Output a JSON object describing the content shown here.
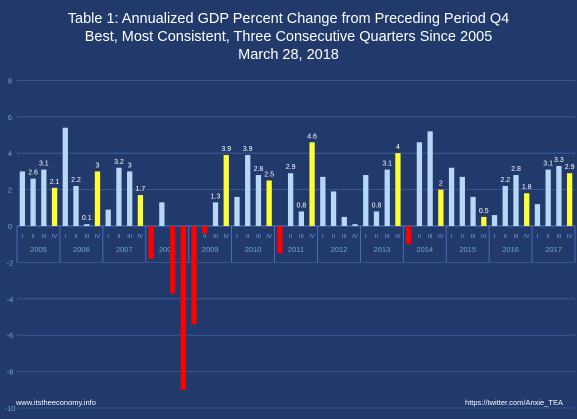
{
  "title": {
    "line1": "Table 1: Annualized GDP Percent Change from Preceding Period Q4",
    "line2": "Best, Most Consistent, Three Consecutive Quarters Since 2005",
    "line3": "March 28, 2018"
  },
  "footer": {
    "left": "www.itstheeconomy.info",
    "right": "https://twitter.com/Anxie_TEA"
  },
  "colors": {
    "background": "#21396b",
    "normal_bar": "#b7d7f5",
    "highlight_bar": "#ffff33",
    "negative_bar": "#ff0000",
    "text": "#ffffff",
    "tick_text": "#6fa8dc",
    "grid": "#3f62a2"
  },
  "chart_data": {
    "type": "bar",
    "ylim": [
      -10,
      8
    ],
    "yticks": [
      -10,
      -8,
      -6,
      -4,
      -2,
      0,
      2,
      4,
      6,
      8
    ],
    "grid": true,
    "quarter_labels": [
      "I",
      "II",
      "III",
      "IV"
    ],
    "years": [
      "2005",
      "2006",
      "2007",
      "2008",
      "2009",
      "2010",
      "2011",
      "2012",
      "2013",
      "2014",
      "2015",
      "2016",
      "2017"
    ],
    "values": [
      3.0,
      2.6,
      3.1,
      2.1,
      5.4,
      2.2,
      0.1,
      3.0,
      0.9,
      3.2,
      3.0,
      1.7,
      -1.8,
      1.3,
      -3.7,
      -9.0,
      -5.4,
      -0.4,
      1.3,
      3.9,
      1.6,
      3.9,
      2.8,
      2.5,
      -1.5,
      2.9,
      0.8,
      4.6,
      2.7,
      1.9,
      0.5,
      0.1,
      2.8,
      0.8,
      3.1,
      4.0,
      -1.0,
      4.6,
      5.2,
      2.0,
      3.2,
      2.7,
      1.6,
      0.5,
      0.6,
      2.2,
      2.8,
      1.8,
      1.2,
      3.1,
      3.3,
      2.9
    ],
    "highlight_quarters": [
      3,
      7,
      11,
      19,
      23,
      27,
      35,
      39,
      43,
      47,
      51
    ],
    "data_labels": [
      {
        "index": 1,
        "text": "2.6"
      },
      {
        "index": 2,
        "text": "3.1"
      },
      {
        "index": 3,
        "text": "2.1"
      },
      {
        "index": 5,
        "text": "2.2"
      },
      {
        "index": 6,
        "text": "0.1"
      },
      {
        "index": 7,
        "text": "3"
      },
      {
        "index": 9,
        "text": "3.2"
      },
      {
        "index": 10,
        "text": "3"
      },
      {
        "index": 11,
        "text": "1.7"
      },
      {
        "index": 18,
        "text": "1.3"
      },
      {
        "index": 19,
        "text": "3.9"
      },
      {
        "index": 21,
        "text": "3.9"
      },
      {
        "index": 22,
        "text": "2.8"
      },
      {
        "index": 23,
        "text": "2.5"
      },
      {
        "index": 25,
        "text": "2.9"
      },
      {
        "index": 26,
        "text": "0.8"
      },
      {
        "index": 27,
        "text": "4.6"
      },
      {
        "index": 33,
        "text": "0.8"
      },
      {
        "index": 34,
        "text": "3.1"
      },
      {
        "index": 35,
        "text": "4"
      },
      {
        "index": 39,
        "text": "2"
      },
      {
        "index": 43,
        "text": "0.5"
      },
      {
        "index": 45,
        "text": "2.2"
      },
      {
        "index": 46,
        "text": "2.8"
      },
      {
        "index": 47,
        "text": "1.8"
      },
      {
        "index": 49,
        "text": "3.1"
      },
      {
        "index": 50,
        "text": "3.3"
      },
      {
        "index": 51,
        "text": "2.9"
      }
    ]
  }
}
